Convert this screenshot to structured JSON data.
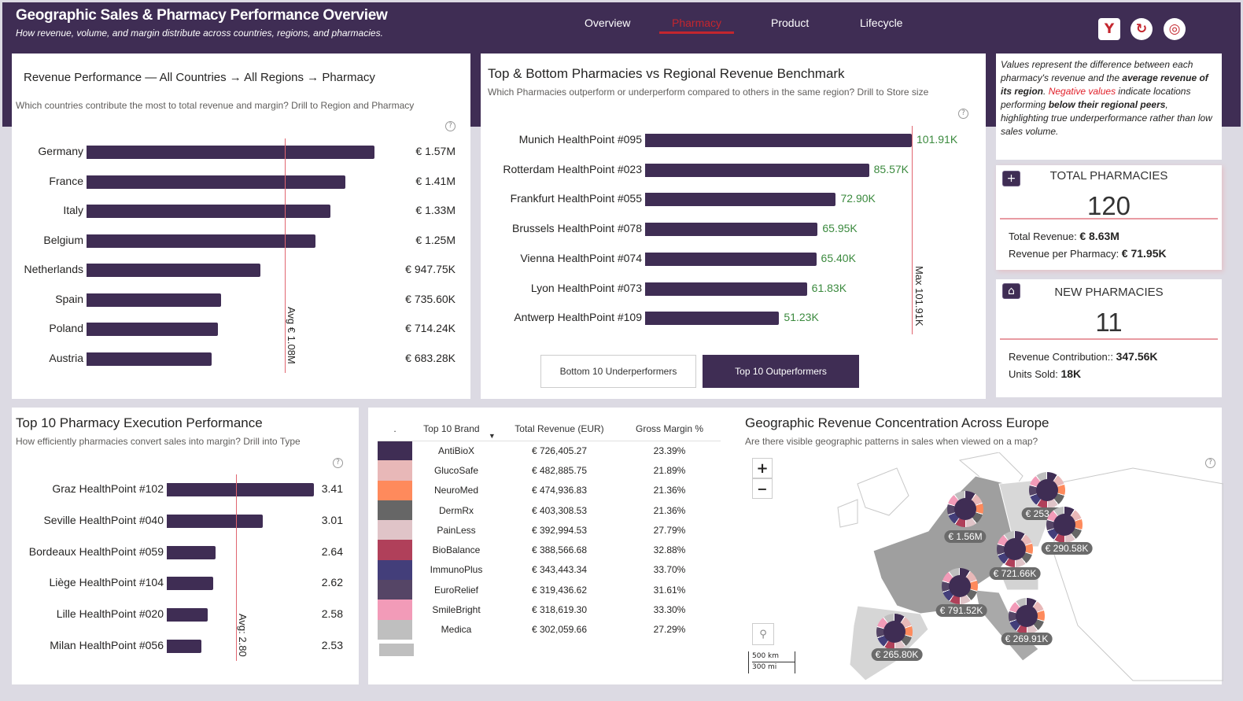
{
  "header": {
    "title": "Geographic Sales & Pharmacy Performance Overview",
    "subtitle": "How revenue, volume, and margin distribute across countries, regions, and pharmacies.",
    "nav": [
      {
        "label": "Overview",
        "active": false
      },
      {
        "label": "Pharmacy",
        "active": true
      },
      {
        "label": "Product",
        "active": false
      },
      {
        "label": "Lifecycle",
        "active": false
      }
    ],
    "icons": [
      "filter-icon",
      "reset-icon",
      "bookmark-icon"
    ],
    "accent": "#c4262e",
    "brand": "#3f2d54"
  },
  "country_chart": {
    "title": "Revenue Performance — All Countries → All Regions → Pharmacy",
    "subtitle": "Which countries contribute the most to total revenue and margin? Drill to Region and Pharmacy",
    "ref_label": "Avg € 1.08M",
    "chart_data": {
      "type": "bar",
      "orientation": "horizontal",
      "categories": [
        "Germany",
        "France",
        "Italy",
        "Belgium",
        "Netherlands",
        "Spain",
        "Poland",
        "Austria"
      ],
      "values": [
        1570000,
        1410000,
        1330000,
        1250000,
        947750,
        735600,
        714240,
        683280
      ],
      "labels": [
        "€ 1.57M",
        "€ 1.41M",
        "€ 1.33M",
        "€ 1.25M",
        "€ 947.75K",
        "€ 735.60K",
        "€ 714.24K",
        "€ 683.28K"
      ],
      "reference_line": 1080000,
      "bar_color": "#3f2d54"
    }
  },
  "pharmacy_chart": {
    "title": "Top & Bottom Pharmacies vs Regional Revenue Benchmark",
    "subtitle": "Which Pharmacies outperform or underperform compared to others in the same region? Drill to Store size",
    "ref_label": "Max 101.91K",
    "chart_data": {
      "type": "bar",
      "orientation": "horizontal",
      "categories": [
        "Munich HealthPoint #095",
        "Rotterdam HealthPoint #023",
        "Frankfurt HealthPoint #055",
        "Brussels HealthPoint #078",
        "Vienna HealthPoint #074",
        "Lyon HealthPoint #073",
        "Antwerp HealthPoint #109"
      ],
      "values": [
        101.91,
        85.57,
        72.9,
        65.95,
        65.4,
        61.83,
        51.23
      ],
      "labels": [
        "101.91K",
        "85.57K",
        "72.90K",
        "65.95K",
        "65.40K",
        "61.83K",
        "51.23K"
      ],
      "reference_line": 101.91,
      "label_color": "#3b8a3e"
    },
    "buttons": [
      {
        "label": "Bottom 10 Underperformers",
        "active": false
      },
      {
        "label": "Top 10 Outperformers",
        "active": true
      }
    ]
  },
  "note": {
    "parts": [
      {
        "t": "Values represent the difference between each pharmacy's revenue and the ",
        "s": "i"
      },
      {
        "t": "average revenue of its region",
        "s": "b"
      },
      {
        "t": ". ",
        "s": "i"
      },
      {
        "t": "Negative values",
        "s": "r"
      },
      {
        "t": " indicate locations performing ",
        "s": "i"
      },
      {
        "t": "below their regional peers",
        "s": "b"
      },
      {
        "t": ", highlighting true underperformance rather than low sales volume.",
        "s": "i"
      }
    ]
  },
  "kpi_total": {
    "title": "TOTAL PHARMACIES",
    "value": "120",
    "line1_label": "Total Revenue: ",
    "line1_value": "€ 8.63M",
    "line2_label": "Revenue per Pharmacy: ",
    "line2_value": "€ 71.95K"
  },
  "kpi_new": {
    "title": "NEW PHARMACIES",
    "value": "11",
    "line1_label": "Revenue Contribution:: ",
    "line1_value": "347.56K",
    "line2_label": "Units Sold: ",
    "line2_value": "18K"
  },
  "exec_chart": {
    "title": "Top 10 Pharmacy Execution Performance",
    "subtitle": "How efficiently pharmacies convert sales into margin? Drill into Type",
    "ref_label": "Avg: 2.80",
    "chart_data": {
      "type": "bar",
      "orientation": "horizontal",
      "categories": [
        "Graz HealthPoint #102",
        "Seville HealthPoint #040",
        "Bordeaux HealthPoint #059",
        "Liège HealthPoint #104",
        "Lille HealthPoint #020",
        "Milan HealthPoint #056"
      ],
      "values": [
        3.41,
        3.01,
        2.64,
        2.62,
        2.58,
        2.53
      ],
      "labels": [
        "3.41",
        "3.01",
        "2.64",
        "2.62",
        "2.58",
        "2.53"
      ],
      "reference_line": 2.8,
      "xmin": 2.26
    }
  },
  "brand_table": {
    "headers": [
      ".",
      "Top 10 Brand",
      "Total Revenue (EUR)",
      "Gross Margin %"
    ],
    "rows": [
      {
        "color": "#3f2d54",
        "brand": "AntiBioX",
        "revenue": "€ 726,405.27",
        "margin": "23.39%"
      },
      {
        "color": "#e8b8b8",
        "brand": "GlucoSafe",
        "revenue": "€ 482,885.75",
        "margin": "21.89%"
      },
      {
        "color": "#fe8a5c",
        "brand": "NeuroMed",
        "revenue": "€ 474,936.83",
        "margin": "21.36%"
      },
      {
        "color": "#666666",
        "brand": "DermRx",
        "revenue": "€ 403,308.53",
        "margin": "21.36%"
      },
      {
        "color": "#e0c4c8",
        "brand": "PainLess",
        "revenue": "€ 392,994.53",
        "margin": "27.79%"
      },
      {
        "color": "#b0405a",
        "brand": "BioBalance",
        "revenue": "€ 388,566.68",
        "margin": "32.88%"
      },
      {
        "color": "#433e7a",
        "brand": "ImmunoPlus",
        "revenue": "€ 343,443.34",
        "margin": "33.70%"
      },
      {
        "color": "#554566",
        "brand": "EuroRelief",
        "revenue": "€ 319,436.62",
        "margin": "31.61%"
      },
      {
        "color": "#f29bb8",
        "brand": "SmileBright",
        "revenue": "€ 318,619.30",
        "margin": "33.30%"
      },
      {
        "color": "#bfbfbf",
        "brand": "Medica",
        "revenue": "€ 302,059.66",
        "margin": "27.29%"
      }
    ]
  },
  "map": {
    "title": "Geographic Revenue Concentration Across Europe",
    "subtitle": "Are there visible geographic patterns in sales when viewed on a map?",
    "zoom_in": "+",
    "zoom_out": "−",
    "scale_km": "500 km",
    "scale_mi": "300 mi",
    "markers": [
      "€ 1.56M",
      "€ 253.80K",
      "€ 290.58K",
      "€ 721.66K",
      "€ 791.52K",
      "€ 269.91K",
      "€ 265.80K"
    ]
  }
}
